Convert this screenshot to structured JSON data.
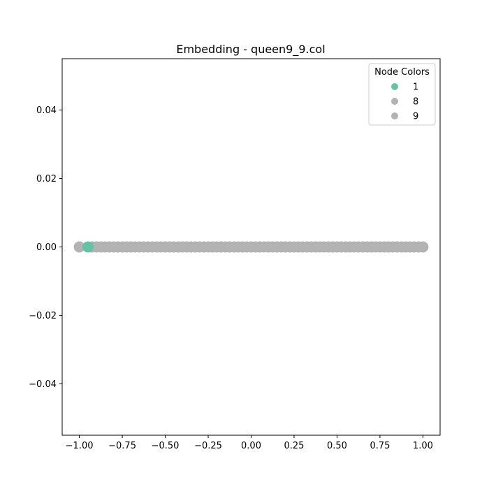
{
  "chart_data": {
    "type": "scatter",
    "title": "Embedding - queen9_9.col",
    "xlabel": "",
    "ylabel": "",
    "xlim": [
      -1.1,
      1.1
    ],
    "ylim": [
      -0.055,
      0.055
    ],
    "x_ticks": [
      -1.0,
      -0.75,
      -0.5,
      -0.25,
      0.0,
      0.25,
      0.5,
      0.75,
      1.0
    ],
    "x_tick_labels": [
      "−1.00",
      "−0.75",
      "−0.50",
      "−0.25",
      "0.00",
      "0.25",
      "0.50",
      "0.75",
      "1.00"
    ],
    "y_ticks": [
      -0.04,
      -0.02,
      0.0,
      0.02,
      0.04
    ],
    "y_tick_labels": [
      "−0.04",
      "−0.02",
      "0.00",
      "0.02",
      "0.04"
    ],
    "grid": false,
    "legend": {
      "title": "Node Colors",
      "placement": "top-right",
      "entries": [
        {
          "label": "1",
          "color": "#66c2a5"
        },
        {
          "label": "8",
          "color": "#b3b3b3"
        },
        {
          "label": "9",
          "color": "#b3b3b3"
        }
      ]
    },
    "series": [
      {
        "name": "1",
        "color": "#66c2a5",
        "x": [
          -0.95
        ],
        "y": [
          0.0
        ]
      },
      {
        "name": "8",
        "color": "#b3b3b3",
        "x": [
          -1.0,
          -0.5,
          0.0,
          0.5,
          1.0
        ],
        "y": [
          0.0,
          0.0,
          0.0,
          0.0,
          0.0
        ]
      },
      {
        "name": "9",
        "color": "#b3b3b3",
        "x": [
          -0.925,
          -0.9,
          -0.875,
          -0.85,
          -0.825,
          -0.8,
          -0.775,
          -0.75,
          -0.725,
          -0.7,
          -0.675,
          -0.65,
          -0.625,
          -0.6,
          -0.575,
          -0.55,
          -0.525,
          -0.475,
          -0.45,
          -0.425,
          -0.4,
          -0.375,
          -0.35,
          -0.325,
          -0.3,
          -0.275,
          -0.25,
          -0.225,
          -0.2,
          -0.175,
          -0.15,
          -0.125,
          -0.1,
          -0.075,
          -0.05,
          -0.025,
          0.025,
          0.05,
          0.075,
          0.1,
          0.125,
          0.15,
          0.175,
          0.2,
          0.225,
          0.25,
          0.275,
          0.3,
          0.325,
          0.35,
          0.375,
          0.4,
          0.425,
          0.45,
          0.475,
          0.525,
          0.55,
          0.575,
          0.6,
          0.625,
          0.65,
          0.675,
          0.7,
          0.725,
          0.75,
          0.775,
          0.8,
          0.825,
          0.85,
          0.875,
          0.9,
          0.925,
          0.95,
          0.975
        ],
        "y": [
          0,
          0,
          0,
          0,
          0,
          0,
          0,
          0,
          0,
          0,
          0,
          0,
          0,
          0,
          0,
          0,
          0,
          0,
          0,
          0,
          0,
          0,
          0,
          0,
          0,
          0,
          0,
          0,
          0,
          0,
          0,
          0,
          0,
          0,
          0,
          0,
          0,
          0,
          0,
          0,
          0,
          0,
          0,
          0,
          0,
          0,
          0,
          0,
          0,
          0,
          0,
          0,
          0,
          0,
          0,
          0,
          0,
          0,
          0,
          0,
          0,
          0,
          0,
          0,
          0,
          0,
          0,
          0,
          0,
          0,
          0,
          0,
          0,
          0
        ]
      }
    ]
  }
}
